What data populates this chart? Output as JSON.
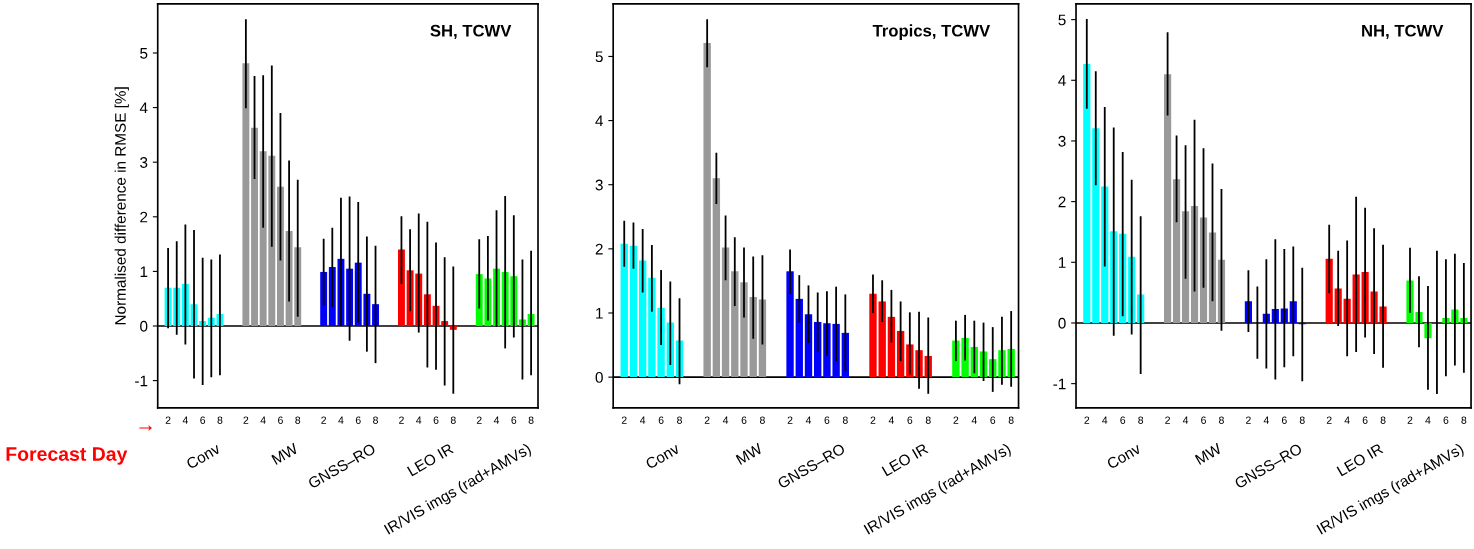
{
  "chart_data": [
    {
      "type": "bar",
      "title": "SH, TCWV",
      "ylabel": "Normalised difference in RMSE [%]",
      "categories": [
        "2",
        null,
        "4",
        null,
        "6",
        null,
        "8",
        null,
        null,
        "2",
        null,
        "4",
        null,
        "6",
        null,
        "8",
        null,
        null,
        "2",
        null,
        "4",
        null,
        "6",
        null,
        "8",
        null,
        null,
        "2",
        null,
        "4",
        null,
        "6",
        null,
        "8",
        null,
        null,
        "2",
        null,
        "4",
        null,
        "6",
        null,
        "8"
      ],
      "values": [
        0.7,
        0.7,
        0.77,
        0.4,
        0.09,
        0.15,
        0.22,
        null,
        null,
        4.81,
        3.63,
        3.2,
        3.12,
        2.55,
        1.74,
        1.44,
        null,
        null,
        0.99,
        1.08,
        1.23,
        1.05,
        1.16,
        0.59,
        0.4,
        null,
        null,
        1.4,
        1.02,
        0.96,
        0.58,
        0.37,
        0.09,
        -0.07,
        null,
        null,
        0.95,
        0.87,
        1.05,
        0.99,
        0.91,
        0.12,
        0.22
      ],
      "errors": [
        [
          -0.04,
          1.43
        ],
        [
          -0.16,
          1.55
        ],
        [
          -0.34,
          1.86
        ],
        [
          -0.96,
          1.76
        ],
        [
          -1.08,
          1.25
        ],
        [
          -0.94,
          1.22
        ],
        [
          -0.9,
          1.31
        ],
        null,
        null,
        [
          3.99,
          5.62
        ],
        [
          2.69,
          4.58
        ],
        [
          1.8,
          4.59
        ],
        [
          1.45,
          4.77
        ],
        [
          1.2,
          3.9
        ],
        [
          0.45,
          3.03
        ],
        [
          0.17,
          2.68
        ],
        null,
        null,
        [
          0.38,
          1.6
        ],
        [
          0.35,
          1.8
        ],
        [
          0.0,
          2.35
        ],
        [
          -0.27,
          2.37
        ],
        [
          0.06,
          2.27
        ],
        [
          -0.47,
          1.64
        ],
        [
          -0.68,
          1.47
        ],
        null,
        null,
        [
          0.77,
          2.01
        ],
        [
          0.27,
          1.77
        ],
        [
          -0.12,
          2.06
        ],
        [
          -0.76,
          1.91
        ],
        [
          -0.8,
          1.53
        ],
        [
          -1.09,
          1.26
        ],
        [
          -1.24,
          1.09
        ],
        null,
        null,
        [
          0.32,
          1.59
        ],
        [
          0.1,
          1.65
        ],
        [
          -0.01,
          2.12
        ],
        [
          -0.41,
          2.38
        ],
        [
          -0.21,
          2.03
        ],
        [
          -0.98,
          1.22
        ],
        [
          -0.9,
          1.38
        ]
      ],
      "colors": [
        "#00ffff",
        "#00ffff",
        "#00ffff",
        "#00ffff",
        "#00ffff",
        "#00ffff",
        "#00ffff",
        null,
        null,
        "#999999",
        "#999999",
        "#999999",
        "#999999",
        "#999999",
        "#999999",
        "#999999",
        null,
        null,
        "#0000ff",
        "#0000ff",
        "#0000ff",
        "#0000ff",
        "#0000ff",
        "#0000ff",
        "#0000ff",
        null,
        null,
        "#ff0000",
        "#ff0000",
        "#ff0000",
        "#ff0000",
        "#ff0000",
        "#ff0000",
        "#ff0000",
        null,
        null,
        "#00ff00",
        "#00ff00",
        "#00ff00",
        "#00ff00",
        "#00ff00",
        "#00ff00",
        "#00ff00"
      ],
      "ylim": [
        -1.5,
        5.9
      ],
      "yticks": [
        -1,
        0,
        1,
        2,
        3,
        4,
        5
      ],
      "ref_lines": [
        {
          "axis": "y",
          "value": 0,
          "color": "#000000"
        }
      ],
      "annotations": [
        "Conv",
        "MW",
        "GNSS–RO",
        "LEO IR",
        "IR/VIS imgs (rad+AMVs)",
        "Forecast Day",
        "→"
      ]
    },
    {
      "type": "bar",
      "title": "Tropics, TCWV",
      "categories": [
        "2",
        null,
        "4",
        null,
        "6",
        null,
        "8",
        null,
        null,
        "2",
        null,
        "4",
        null,
        "6",
        null,
        "8",
        null,
        null,
        "2",
        null,
        "4",
        null,
        "6",
        null,
        "8",
        null,
        null,
        "2",
        null,
        "4",
        null,
        "6",
        null,
        "8",
        null,
        null,
        "2",
        null,
        "4",
        null,
        "6",
        null,
        "8"
      ],
      "values": [
        2.08,
        2.05,
        1.82,
        1.55,
        1.08,
        0.85,
        0.57,
        null,
        null,
        5.21,
        3.1,
        2.02,
        1.65,
        1.48,
        1.25,
        1.21,
        null,
        null,
        1.65,
        1.22,
        0.98,
        0.86,
        0.84,
        0.83,
        0.69,
        null,
        null,
        1.3,
        1.18,
        0.94,
        0.72,
        0.51,
        0.42,
        0.33,
        null,
        null,
        0.57,
        0.61,
        0.47,
        0.4,
        0.28,
        0.42,
        0.44
      ],
      "errors": [
        [
          1.72,
          2.44
        ],
        [
          1.69,
          2.41
        ],
        [
          1.32,
          2.31
        ],
        [
          1.02,
          2.06
        ],
        [
          0.5,
          1.67
        ],
        [
          0.19,
          1.49
        ],
        [
          -0.11,
          1.23
        ],
        null,
        null,
        [
          4.83,
          5.58
        ],
        [
          2.7,
          3.5
        ],
        [
          1.51,
          2.52
        ],
        [
          1.11,
          2.18
        ],
        [
          0.93,
          2.02
        ],
        [
          0.6,
          1.88
        ],
        [
          0.51,
          1.9
        ],
        null,
        null,
        [
          1.3,
          1.99
        ],
        [
          0.85,
          1.59
        ],
        [
          0.53,
          1.43
        ],
        [
          0.39,
          1.32
        ],
        [
          0.33,
          1.34
        ],
        [
          0.25,
          1.41
        ],
        [
          0.09,
          1.29
        ],
        null,
        null,
        [
          1.0,
          1.6
        ],
        [
          0.86,
          1.51
        ],
        [
          0.54,
          1.36
        ],
        [
          0.25,
          1.18
        ],
        [
          0.04,
          1.01
        ],
        [
          -0.18,
          1.02
        ],
        [
          -0.26,
          0.93
        ],
        null,
        null,
        [
          0.25,
          0.88
        ],
        [
          0.26,
          0.97
        ],
        [
          0.06,
          0.88
        ],
        [
          -0.06,
          0.85
        ],
        [
          -0.23,
          0.78
        ],
        [
          -0.12,
          0.94
        ],
        [
          -0.15,
          1.03
        ]
      ],
      "colors": [
        "#00ffff",
        "#00ffff",
        "#00ffff",
        "#00ffff",
        "#00ffff",
        "#00ffff",
        "#00ffff",
        null,
        null,
        "#999999",
        "#999999",
        "#999999",
        "#999999",
        "#999999",
        "#999999",
        "#999999",
        null,
        null,
        "#0000ff",
        "#0000ff",
        "#0000ff",
        "#0000ff",
        "#0000ff",
        "#0000ff",
        "#0000ff",
        null,
        null,
        "#ff0000",
        "#ff0000",
        "#ff0000",
        "#ff0000",
        "#ff0000",
        "#ff0000",
        "#ff0000",
        null,
        null,
        "#00ff00",
        "#00ff00",
        "#00ff00",
        "#00ff00",
        "#00ff00",
        "#00ff00",
        "#00ff00"
      ],
      "ylim": [
        -0.48,
        5.82
      ],
      "yticks": [
        0,
        1,
        2,
        3,
        4,
        5
      ],
      "ref_lines": [
        {
          "axis": "y",
          "value": 0,
          "color": "#000000"
        }
      ],
      "annotations": [
        "Conv",
        "MW",
        "GNSS–RO",
        "LEO IR",
        "IR/VIS imgs (rad+AMVs)"
      ]
    },
    {
      "type": "bar",
      "title": "NH, TCWV",
      "categories": [
        "2",
        null,
        "4",
        null,
        "6",
        null,
        "8",
        null,
        null,
        "2",
        null,
        "4",
        null,
        "6",
        null,
        "8",
        null,
        null,
        "2",
        null,
        "4",
        null,
        "6",
        null,
        "8",
        null,
        null,
        "2",
        null,
        "4",
        null,
        "6",
        null,
        "8",
        null,
        null,
        "2",
        null,
        "4",
        null,
        "6",
        null,
        "8"
      ],
      "values": [
        4.27,
        3.21,
        2.25,
        1.51,
        1.47,
        1.09,
        0.47,
        null,
        null,
        4.1,
        2.37,
        1.84,
        1.93,
        1.74,
        1.49,
        1.04,
        null,
        null,
        0.36,
        0.0,
        0.15,
        0.23,
        0.24,
        0.36,
        -0.02,
        null,
        null,
        1.06,
        0.57,
        0.4,
        0.8,
        0.84,
        0.52,
        0.27,
        null,
        null,
        0.7,
        0.18,
        -0.25,
        0.0,
        0.08,
        0.22,
        0.08
      ],
      "errors": [
        [
          3.53,
          5.01
        ],
        [
          2.27,
          4.15
        ],
        [
          0.93,
          3.56
        ],
        [
          -0.21,
          3.22
        ],
        [
          0.11,
          2.82
        ],
        [
          -0.19,
          2.36
        ],
        [
          -0.84,
          1.76
        ],
        null,
        null,
        [
          3.42,
          4.79
        ],
        [
          1.66,
          3.09
        ],
        [
          0.73,
          2.93
        ],
        [
          0.52,
          3.35
        ],
        [
          0.58,
          2.88
        ],
        [
          0.36,
          2.63
        ],
        [
          -0.13,
          2.21
        ],
        null,
        null,
        [
          -0.15,
          0.87
        ],
        [
          -0.59,
          0.6
        ],
        [
          -0.75,
          1.05
        ],
        [
          -0.93,
          1.38
        ],
        [
          -0.73,
          1.22
        ],
        [
          -0.55,
          1.26
        ],
        [
          -0.96,
          0.91
        ],
        null,
        null,
        [
          0.49,
          1.62
        ],
        [
          -0.05,
          1.19
        ],
        [
          -0.55,
          1.36
        ],
        [
          -0.48,
          2.08
        ],
        [
          -0.24,
          1.9
        ],
        [
          -0.51,
          1.56
        ],
        [
          -0.74,
          1.29
        ],
        null,
        null,
        [
          0.17,
          1.24
        ],
        [
          -0.4,
          0.77
        ],
        [
          -1.1,
          0.61
        ],
        [
          -1.17,
          1.19
        ],
        [
          -0.88,
          1.05
        ],
        [
          -0.7,
          1.14
        ],
        [
          -0.82,
          0.99
        ]
      ],
      "colors": [
        "#00ffff",
        "#00ffff",
        "#00ffff",
        "#00ffff",
        "#00ffff",
        "#00ffff",
        "#00ffff",
        null,
        null,
        "#999999",
        "#999999",
        "#999999",
        "#999999",
        "#999999",
        "#999999",
        "#999999",
        null,
        null,
        "#0000ff",
        "#0000ff",
        "#0000ff",
        "#0000ff",
        "#0000ff",
        "#0000ff",
        "#0000ff",
        null,
        null,
        "#ff0000",
        "#ff0000",
        "#ff0000",
        "#ff0000",
        "#ff0000",
        "#ff0000",
        "#ff0000",
        null,
        null,
        "#00ff00",
        "#00ff00",
        "#00ff00",
        "#00ff00",
        "#00ff00",
        "#00ff00",
        "#00ff00"
      ],
      "ylim": [
        -1.4,
        5.26
      ],
      "yticks": [
        -1,
        0,
        1,
        2,
        3,
        4,
        5
      ],
      "ref_lines": [
        {
          "axis": "y",
          "value": 0,
          "color": "#000000"
        }
      ],
      "annotations": [
        "Conv",
        "MW",
        "GNSS–RO",
        "LEO IR",
        "IR/VIS imgs (rad+AMVs)"
      ]
    }
  ]
}
